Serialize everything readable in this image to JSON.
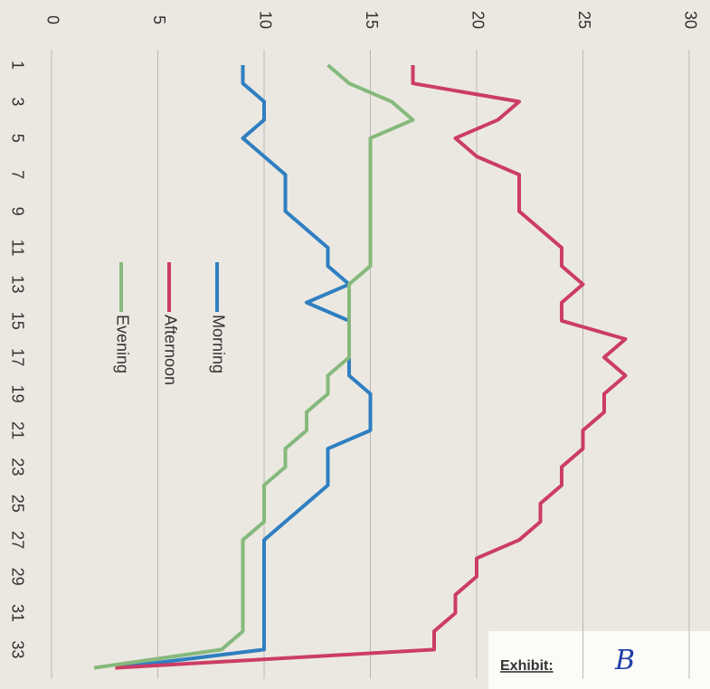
{
  "chart_data": {
    "type": "line",
    "categories": [
      "1",
      null,
      "3",
      null,
      "5",
      null,
      "7",
      null,
      "9",
      null,
      "11",
      null,
      "13",
      null,
      "15",
      null,
      "17",
      null,
      "19",
      null,
      "21",
      null,
      "23",
      null,
      "25",
      null,
      "27",
      null,
      "29",
      null,
      "31",
      null,
      "33",
      null
    ],
    "series": [
      {
        "name": "Morning",
        "color": "#2f7fc1",
        "values": [
          9,
          9,
          10,
          10,
          9,
          10,
          11,
          11,
          11,
          12,
          13,
          13,
          14,
          12,
          14,
          14,
          14,
          14,
          15,
          15,
          15,
          13,
          13,
          13,
          12,
          11,
          10,
          10,
          10,
          10,
          10,
          10,
          10,
          3
        ]
      },
      {
        "name": "Afternoon",
        "color": "#cc3d62",
        "values": [
          17,
          17,
          22,
          21,
          19,
          20,
          22,
          22,
          22,
          23,
          24,
          24,
          25,
          24,
          24,
          27,
          26,
          27,
          26,
          26,
          25,
          25,
          24,
          24,
          23,
          23,
          22,
          20,
          20,
          19,
          19,
          18,
          18,
          3
        ]
      },
      {
        "name": "Evening",
        "color": "#86b97c",
        "values": [
          13,
          14,
          16,
          17,
          15,
          15,
          15,
          15,
          15,
          15,
          15,
          15,
          14,
          14,
          14,
          14,
          14,
          13,
          13,
          12,
          12,
          11,
          11,
          10,
          10,
          10,
          9,
          9,
          9,
          9,
          9,
          9,
          8,
          2
        ]
      }
    ],
    "ylim": [
      0,
      30
    ],
    "yticks": [
      0,
      5,
      10,
      15,
      20,
      25,
      30
    ],
    "grid": true,
    "annotations": [
      "Exhibit:",
      "B"
    ]
  }
}
